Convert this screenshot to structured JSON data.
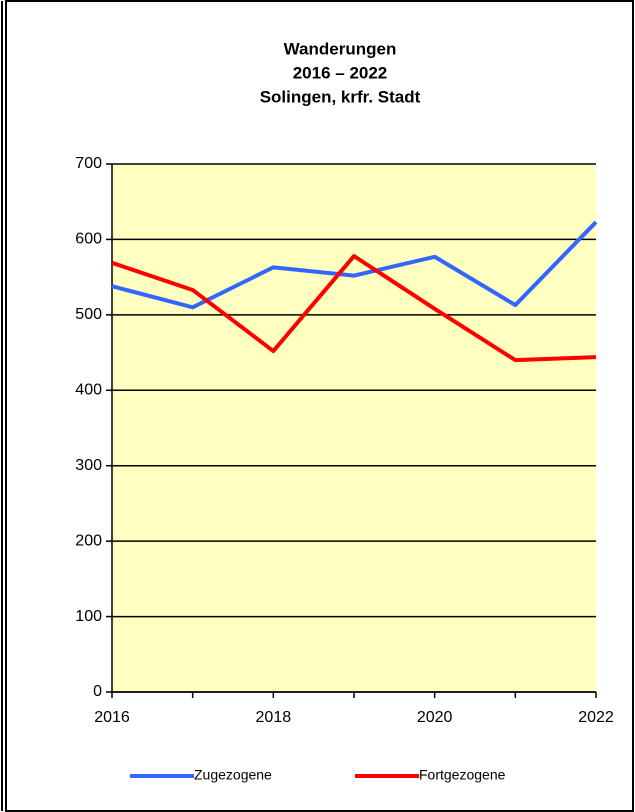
{
  "chart_data": {
    "type": "line",
    "title": [
      "Wanderungen",
      "2016 – 2022",
      "Solingen, krfr. Stadt"
    ],
    "x": [
      2016,
      2017,
      2018,
      2019,
      2020,
      2021,
      2022
    ],
    "series": [
      {
        "name": "Zugezogene",
        "color": "#3366ff",
        "values": [
          538,
          510,
          563,
          552,
          577,
          513,
          623
        ]
      },
      {
        "name": "Fortgezogene",
        "color": "#ff0000",
        "values": [
          569,
          533,
          452,
          578,
          508,
          440,
          444
        ]
      }
    ],
    "xlim": [
      2016,
      2022
    ],
    "xticks": [
      2016,
      2018,
      2020,
      2022
    ],
    "ylim": [
      0,
      700
    ],
    "yticks": [
      0,
      100,
      200,
      300,
      400,
      500,
      600,
      700
    ],
    "grid": true,
    "legend": "bottom",
    "background": "#ffffc0"
  }
}
